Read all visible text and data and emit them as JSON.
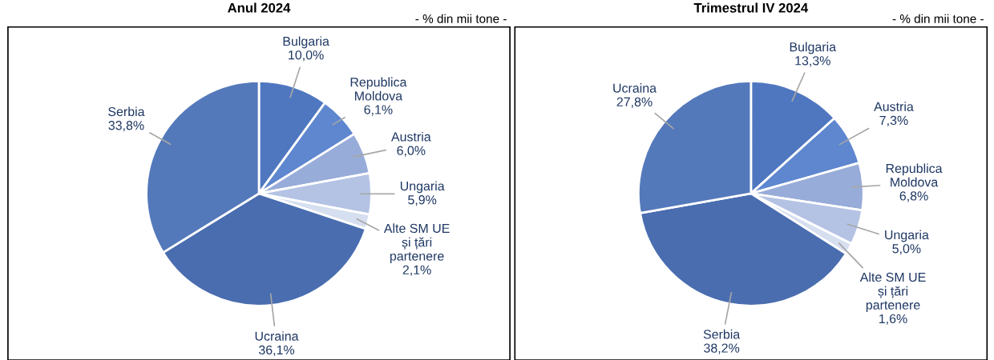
{
  "chart_data": [
    {
      "type": "pie",
      "title": "Anul 2024",
      "annotations": [
        "- % din mii tone -"
      ],
      "categories": [
        "Bulgaria",
        "Republica Moldova",
        "Austria",
        "Ungaria",
        "Alte SM UE și țări partenere",
        "Ucraina",
        "Serbia"
      ],
      "values": [
        10.0,
        6.1,
        6.0,
        5.9,
        2.1,
        36.1,
        33.8
      ],
      "value_labels": [
        "10,0%",
        "6,1%",
        "6,0%",
        "5,9%",
        "2,1%",
        "36,1%",
        "33,8%"
      ],
      "colors": [
        "#4f77c0",
        "#5f87cf",
        "#98acd9",
        "#b4c3e4",
        "#d6dff0",
        "#4a6db0",
        "#5479bb"
      ],
      "legend": false
    },
    {
      "type": "pie",
      "title": "Trimestrul IV 2024",
      "annotations": [
        "- % din mii tone -"
      ],
      "categories": [
        "Bulgaria",
        "Austria",
        "Republica Moldova",
        "Ungaria",
        "Alte SM UE și țări partenere",
        "Serbia",
        "Ucraina"
      ],
      "values": [
        13.3,
        7.3,
        6.8,
        5.0,
        1.6,
        38.2,
        27.8
      ],
      "value_labels": [
        "13,3%",
        "7,3%",
        "6,8%",
        "5,0%",
        "1,6%",
        "38,2%",
        "27,8%"
      ],
      "colors": [
        "#4f77c0",
        "#5f87cf",
        "#98acd9",
        "#b4c3e4",
        "#d6dff0",
        "#4a6db0",
        "#5479bb"
      ],
      "legend": false
    }
  ]
}
